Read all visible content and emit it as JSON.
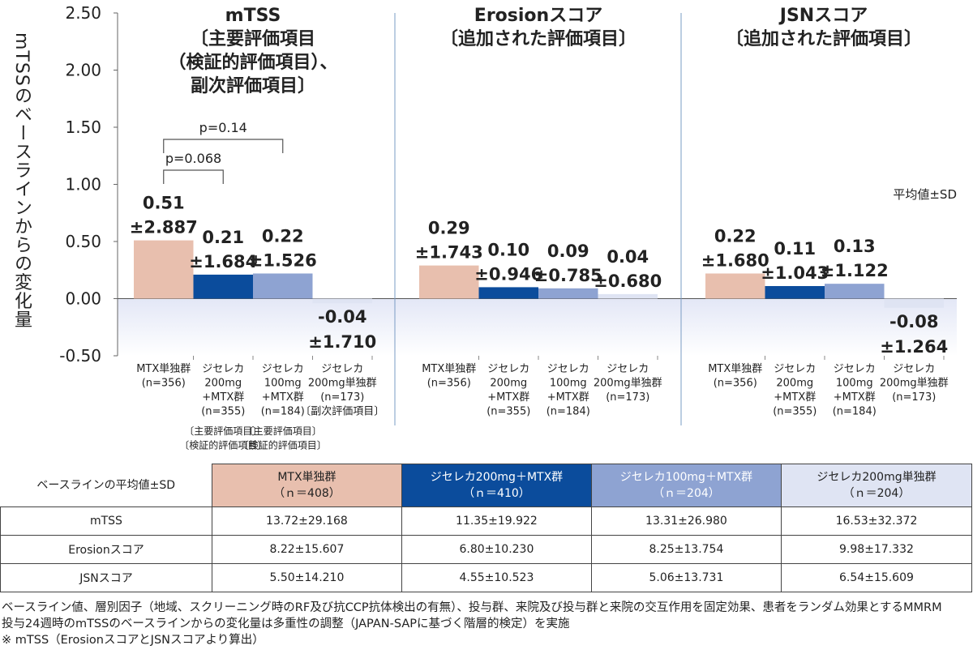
{
  "chart_data": {
    "type": "bar",
    "ylabel": "mTSSのベースラインからの変化量",
    "ylim": [
      -0.5,
      2.5
    ],
    "yticks": [
      "2.50",
      "2.00",
      "1.50",
      "1.00",
      "0.50",
      "0.00",
      "-0.50"
    ],
    "yticks_values": [
      2.5,
      2.0,
      1.5,
      1.0,
      0.5,
      0.0,
      -0.5
    ],
    "annotation_sd": "平均値±SD",
    "colors": [
      "#e8bfae",
      "#0b4c9c",
      "#8ea3d2",
      "#dfe4f3"
    ],
    "panels": [
      {
        "title_lines": [
          "mTSS",
          "〔主要評価項目",
          "（検証的評価項目）、",
          "副次評価項目〕"
        ],
        "groups": [
          {
            "label_lines": [
              "MTX単独群",
              "(n=356)"
            ],
            "value": 0.51,
            "sd_label": "±2.887",
            "value_label": "0.51",
            "note_lines": []
          },
          {
            "label_lines": [
              "ジセレカ",
              "200mg",
              "+MTX群",
              "(n=355)"
            ],
            "value": 0.21,
            "sd_label": "±1.684",
            "value_label": "0.21",
            "note_lines": [
              "〔主要評価項目〕",
              "〔検証的評価項目〕"
            ]
          },
          {
            "label_lines": [
              "ジセレカ",
              "100mg",
              "+MTX群",
              "(n=184)"
            ],
            "value": 0.22,
            "sd_label": "±1.526",
            "value_label": "0.22",
            "note_lines": [
              "〔主要評価項目〕",
              "〔検証的評価項目〕"
            ]
          },
          {
            "label_lines": [
              "ジセレカ",
              "200mg単独群",
              "(n=173)",
              "〔副次評価項目〕"
            ],
            "value": -0.04,
            "sd_label": "±1.710",
            "value_label": "-0.04",
            "note_lines": []
          }
        ],
        "pvalues": [
          {
            "label": "p=0.14",
            "from": 0,
            "to": 2
          },
          {
            "label": "p=0.068",
            "from": 0,
            "to": 1
          }
        ]
      },
      {
        "title_lines": [
          "Erosionスコア",
          "〔追加された評価項目〕"
        ],
        "groups": [
          {
            "label_lines": [
              "MTX単独群",
              "(n=356)"
            ],
            "value": 0.29,
            "sd_label": "±1.743",
            "value_label": "0.29",
            "note_lines": []
          },
          {
            "label_lines": [
              "ジセレカ",
              "200mg",
              "+MTX群",
              "(n=355)"
            ],
            "value": 0.1,
            "sd_label": "±0.946",
            "value_label": "0.10",
            "note_lines": []
          },
          {
            "label_lines": [
              "ジセレカ",
              "100mg",
              "+MTX群",
              "(n=184)"
            ],
            "value": 0.09,
            "sd_label": "±0.785",
            "value_label": "0.09",
            "note_lines": []
          },
          {
            "label_lines": [
              "ジセレカ",
              "200mg単独群",
              "(n=173)"
            ],
            "value": 0.04,
            "sd_label": "±0.680",
            "value_label": "0.04",
            "note_lines": []
          }
        ],
        "pvalues": []
      },
      {
        "title_lines": [
          "JSNスコア",
          "〔追加された評価項目〕"
        ],
        "groups": [
          {
            "label_lines": [
              "MTX単独群",
              "(n=356)"
            ],
            "value": 0.22,
            "sd_label": "±1.680",
            "value_label": "0.22",
            "note_lines": []
          },
          {
            "label_lines": [
              "ジセレカ",
              "200mg",
              "+MTX群",
              "(n=355)"
            ],
            "value": 0.11,
            "sd_label": "±1.043",
            "value_label": "0.11",
            "note_lines": []
          },
          {
            "label_lines": [
              "ジセレカ",
              "100mg",
              "+MTX群",
              "(n=184)"
            ],
            "value": 0.13,
            "sd_label": "±1.122",
            "value_label": "0.13",
            "note_lines": []
          },
          {
            "label_lines": [
              "ジセレカ",
              "200mg単独群",
              "(n=173)"
            ],
            "value": -0.08,
            "sd_label": "±1.264",
            "value_label": "-0.08",
            "note_lines": []
          }
        ],
        "pvalues": []
      }
    ]
  },
  "baseline_table": {
    "corner": "ベースラインの平均値±SD",
    "headers": [
      {
        "line1": "MTX単独群",
        "line2": "（ｎ＝408）",
        "bg": "#e8bfae",
        "fg": "#222222"
      },
      {
        "line1": "ジセレカ200mg＋MTX群",
        "line2": "（ｎ＝410）",
        "bg": "#0b4c9c",
        "fg": "#ffffff"
      },
      {
        "line1": "ジセレカ100mg＋MTX群",
        "line2": "（ｎ＝204）",
        "bg": "#8ea3d2",
        "fg": "#ffffff"
      },
      {
        "line1": "ジセレカ200mg単独群",
        "line2": "（ｎ＝204）",
        "bg": "#dfe4f3",
        "fg": "#222222"
      }
    ],
    "rows": [
      {
        "label": "mTSS",
        "cells": [
          "13.72±29.168",
          "11.35±19.922",
          "13.31±26.980",
          "16.53±32.372"
        ]
      },
      {
        "label": "Erosionスコア",
        "cells": [
          "8.22±15.607",
          "6.80±10.230",
          "8.25±13.754",
          "9.98±17.332"
        ]
      },
      {
        "label": "JSNスコア",
        "cells": [
          "5.50±14.210",
          "4.55±10.523",
          "5.06±13.731",
          "6.54±15.609"
        ]
      }
    ]
  },
  "footnotes": {
    "line1": "ベースライン値、層別因子（地域、スクリーニング時のRF及び抗CCP抗体検出の有無）、投与群、来院及び投与群と来院の交互作用を固定効果、患者をランダム効果とするMMRM",
    "line2": "投与24週時のmTSSのベースラインからの変化量は多重性の調整（JAPAN-SAPに基づく階層的検定）を実施",
    "line3": "※ mTSS（ErosionスコアとJSNスコアより算出）"
  }
}
